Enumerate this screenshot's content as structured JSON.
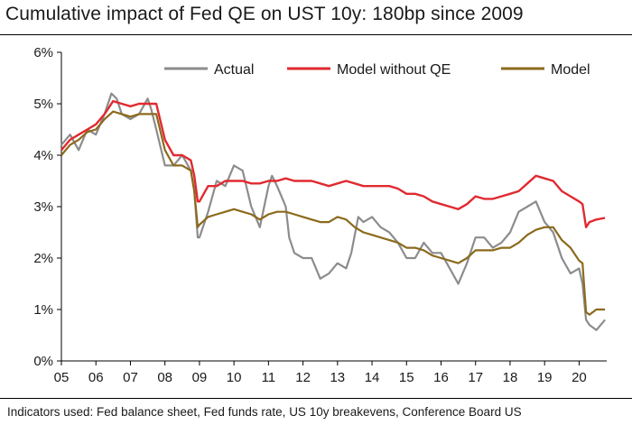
{
  "title": "Cumulative impact of Fed QE on UST 10y: 180bp since 2009",
  "footer": "Indicators used: Fed balance sheet, Fed funds rate, US 10y breakevens, Conference Board US",
  "colors": {
    "Actual": "#8c8c8c",
    "Model without QE": "#e02a30",
    "Model": "#8b6a1c",
    "axis": "#000000"
  },
  "chart_data": {
    "type": "line",
    "title": "Cumulative impact of Fed QE on UST 10y: 180bp since 2009",
    "xlabel": "",
    "ylabel": "",
    "xlim": [
      2005,
      2020.8
    ],
    "ylim": [
      0,
      6
    ],
    "y_ticks": [
      "0%",
      "1%",
      "2%",
      "3%",
      "4%",
      "5%",
      "6%"
    ],
    "x_ticks": [
      "05",
      "06",
      "07",
      "08",
      "09",
      "10",
      "11",
      "12",
      "13",
      "14",
      "15",
      "16",
      "17",
      "18",
      "19",
      "20"
    ],
    "grid": false,
    "legend": {
      "position": "top-right",
      "entries": [
        "Actual",
        "Model without QE",
        "Model"
      ]
    },
    "series": [
      {
        "name": "Actual",
        "x": [
          2005.0,
          2005.25,
          2005.5,
          2005.75,
          2006.0,
          2006.25,
          2006.45,
          2006.6,
          2006.75,
          2007.0,
          2007.25,
          2007.5,
          2007.6,
          2007.75,
          2008.0,
          2008.25,
          2008.5,
          2008.75,
          2008.85,
          2008.95,
          2009.0,
          2009.25,
          2009.5,
          2009.75,
          2010.0,
          2010.25,
          2010.5,
          2010.75,
          2011.0,
          2011.1,
          2011.25,
          2011.5,
          2011.6,
          2011.75,
          2012.0,
          2012.25,
          2012.5,
          2012.75,
          2013.0,
          2013.25,
          2013.4,
          2013.6,
          2013.75,
          2014.0,
          2014.25,
          2014.5,
          2014.75,
          2015.0,
          2015.25,
          2015.5,
          2015.75,
          2016.0,
          2016.25,
          2016.5,
          2016.75,
          2017.0,
          2017.25,
          2017.5,
          2017.75,
          2018.0,
          2018.25,
          2018.5,
          2018.75,
          2019.0,
          2019.25,
          2019.5,
          2019.75,
          2020.0,
          2020.1,
          2020.2,
          2020.3,
          2020.5,
          2020.75
        ],
        "values": [
          4.2,
          4.4,
          4.1,
          4.5,
          4.4,
          4.8,
          5.2,
          5.1,
          4.8,
          4.7,
          4.8,
          5.1,
          4.9,
          4.5,
          3.8,
          3.8,
          4.0,
          3.7,
          3.3,
          2.4,
          2.4,
          2.9,
          3.5,
          3.4,
          3.8,
          3.7,
          3.0,
          2.6,
          3.4,
          3.6,
          3.4,
          3.0,
          2.4,
          2.1,
          2.0,
          2.0,
          1.6,
          1.7,
          1.9,
          1.8,
          2.1,
          2.8,
          2.7,
          2.8,
          2.6,
          2.5,
          2.3,
          2.0,
          2.0,
          2.3,
          2.1,
          2.1,
          1.8,
          1.5,
          1.9,
          2.4,
          2.4,
          2.2,
          2.3,
          2.5,
          2.9,
          3.0,
          3.1,
          2.7,
          2.5,
          2.0,
          1.7,
          1.8,
          1.5,
          0.8,
          0.7,
          0.6,
          0.8
        ]
      },
      {
        "name": "Model without QE",
        "x": [
          2005.0,
          2005.25,
          2005.5,
          2005.75,
          2006.0,
          2006.25,
          2006.5,
          2006.75,
          2007.0,
          2007.25,
          2007.5,
          2007.75,
          2008.0,
          2008.25,
          2008.5,
          2008.75,
          2008.85,
          2008.95,
          2009.0,
          2009.25,
          2009.5,
          2009.75,
          2010.0,
          2010.25,
          2010.5,
          2010.75,
          2011.0,
          2011.25,
          2011.5,
          2011.75,
          2012.0,
          2012.25,
          2012.5,
          2012.75,
          2013.0,
          2013.25,
          2013.5,
          2013.75,
          2014.0,
          2014.25,
          2014.5,
          2014.75,
          2015.0,
          2015.25,
          2015.5,
          2015.75,
          2016.0,
          2016.25,
          2016.5,
          2016.75,
          2017.0,
          2017.25,
          2017.5,
          2017.75,
          2018.0,
          2018.25,
          2018.5,
          2018.75,
          2019.0,
          2019.25,
          2019.5,
          2019.75,
          2020.0,
          2020.1,
          2020.2,
          2020.3,
          2020.5,
          2020.75
        ],
        "values": [
          4.1,
          4.3,
          4.4,
          4.5,
          4.6,
          4.8,
          5.05,
          5.0,
          4.95,
          5.0,
          5.0,
          5.0,
          4.3,
          4.0,
          4.0,
          3.9,
          3.6,
          3.1,
          3.1,
          3.4,
          3.4,
          3.5,
          3.5,
          3.5,
          3.45,
          3.45,
          3.5,
          3.5,
          3.55,
          3.5,
          3.5,
          3.5,
          3.45,
          3.4,
          3.45,
          3.5,
          3.45,
          3.4,
          3.4,
          3.4,
          3.4,
          3.35,
          3.25,
          3.25,
          3.2,
          3.1,
          3.05,
          3.0,
          2.95,
          3.05,
          3.2,
          3.15,
          3.15,
          3.2,
          3.25,
          3.3,
          3.45,
          3.6,
          3.55,
          3.5,
          3.3,
          3.2,
          3.1,
          3.05,
          2.6,
          2.7,
          2.75,
          2.78
        ]
      },
      {
        "name": "Model",
        "x": [
          2005.0,
          2005.25,
          2005.5,
          2005.75,
          2006.0,
          2006.25,
          2006.5,
          2006.75,
          2007.0,
          2007.25,
          2007.5,
          2007.75,
          2008.0,
          2008.25,
          2008.5,
          2008.75,
          2008.85,
          2008.95,
          2009.0,
          2009.25,
          2009.5,
          2009.75,
          2010.0,
          2010.25,
          2010.5,
          2010.75,
          2011.0,
          2011.25,
          2011.5,
          2011.75,
          2012.0,
          2012.25,
          2012.5,
          2012.75,
          2013.0,
          2013.25,
          2013.5,
          2013.75,
          2014.0,
          2014.25,
          2014.5,
          2014.75,
          2015.0,
          2015.25,
          2015.5,
          2015.75,
          2016.0,
          2016.25,
          2016.5,
          2016.75,
          2017.0,
          2017.25,
          2017.5,
          2017.75,
          2018.0,
          2018.25,
          2018.5,
          2018.75,
          2019.0,
          2019.25,
          2019.5,
          2019.75,
          2020.0,
          2020.1,
          2020.2,
          2020.3,
          2020.5,
          2020.75
        ],
        "values": [
          4.0,
          4.2,
          4.3,
          4.45,
          4.5,
          4.7,
          4.85,
          4.8,
          4.75,
          4.8,
          4.8,
          4.8,
          4.1,
          3.8,
          3.8,
          3.7,
          3.3,
          2.6,
          2.65,
          2.8,
          2.85,
          2.9,
          2.95,
          2.9,
          2.85,
          2.75,
          2.85,
          2.9,
          2.9,
          2.85,
          2.8,
          2.75,
          2.7,
          2.7,
          2.8,
          2.75,
          2.6,
          2.5,
          2.45,
          2.4,
          2.35,
          2.3,
          2.2,
          2.2,
          2.15,
          2.05,
          2.0,
          1.95,
          1.9,
          2.0,
          2.15,
          2.15,
          2.15,
          2.2,
          2.2,
          2.3,
          2.45,
          2.55,
          2.6,
          2.6,
          2.35,
          2.2,
          1.95,
          1.9,
          0.95,
          0.9,
          1.0,
          1.0
        ]
      }
    ]
  }
}
